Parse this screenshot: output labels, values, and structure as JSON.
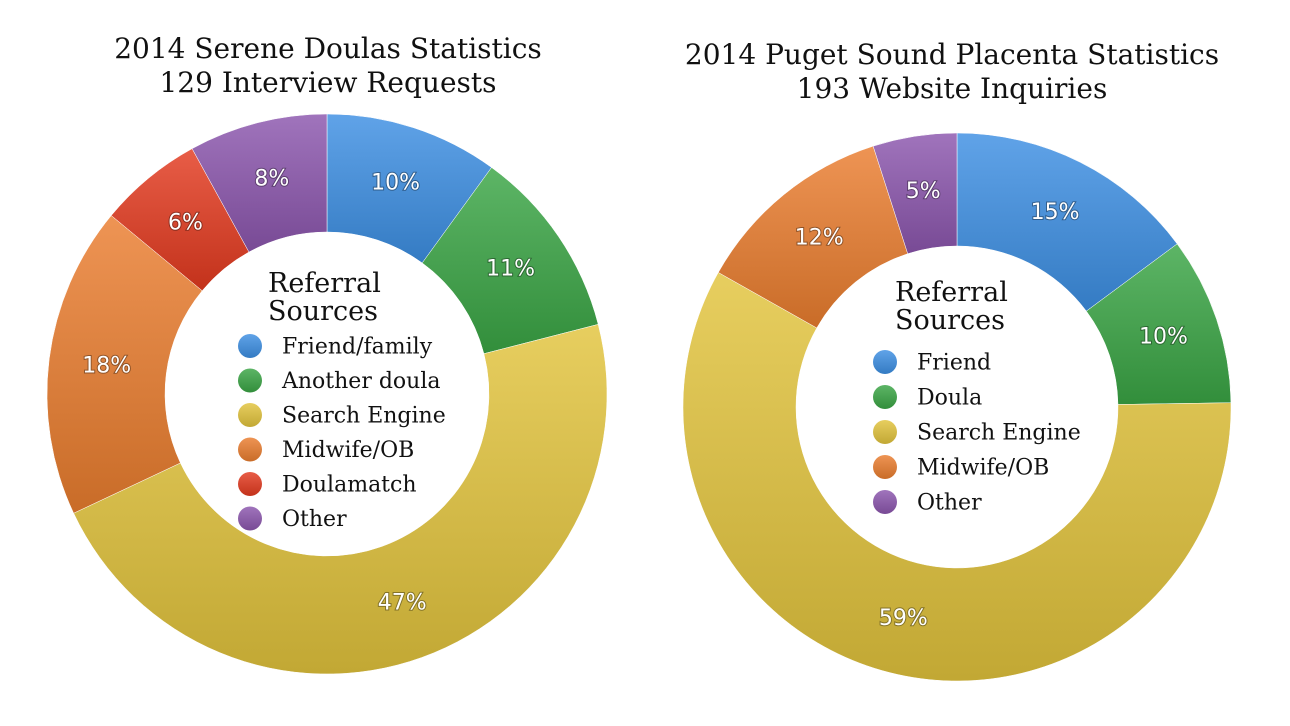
{
  "colors": {
    "blue": "#3d8fe3",
    "green": "#3aa545",
    "yellow": "#e2c33c",
    "orange": "#ea7d2e",
    "red": "#e33a1f",
    "purple": "#8b56ad"
  },
  "chart_data": [
    {
      "type": "pie",
      "title_lines": [
        "2014 Serene Doulas Statistics",
        "129 Interview Requests"
      ],
      "legend_title_lines": [
        "Referral",
        "Sources"
      ],
      "slices": [
        {
          "name": "Friend/family",
          "value": 10,
          "label": "10%",
          "color": "blue"
        },
        {
          "name": "Another doula",
          "value": 11,
          "label": "11%",
          "color": "green"
        },
        {
          "name": "Search Engine",
          "value": 47,
          "label": "47%",
          "color": "yellow"
        },
        {
          "name": "Midwife/OB",
          "value": 18,
          "label": "18%",
          "color": "orange"
        },
        {
          "name": "Doulamatch",
          "value": 6,
          "label": "6%",
          "color": "red"
        },
        {
          "name": "Other",
          "value": 8,
          "label": "8%",
          "color": "purple"
        }
      ]
    },
    {
      "type": "pie",
      "title_lines": [
        "2014 Puget Sound Placenta Statistics",
        "193 Website Inquiries"
      ],
      "legend_title_lines": [
        "Referral",
        "Sources"
      ],
      "slices": [
        {
          "name": "Friend",
          "value": 15,
          "label": "15%",
          "color": "blue"
        },
        {
          "name": "Doula",
          "value": 10,
          "label": "10%",
          "color": "green"
        },
        {
          "name": "Search Engine",
          "value": 59,
          "label": "59%",
          "color": "yellow"
        },
        {
          "name": "Midwife/OB",
          "value": 12,
          "label": "12%",
          "color": "orange"
        },
        {
          "name": "Other",
          "value": 5,
          "label": "5%",
          "color": "purple"
        }
      ]
    }
  ]
}
